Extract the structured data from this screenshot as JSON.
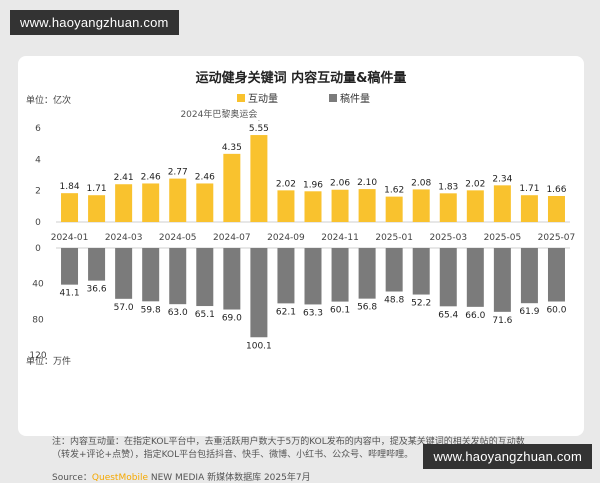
{
  "watermark": {
    "text": "www.haoyangzhuan.com"
  },
  "colors": {
    "interaction": "#f9c22e",
    "posts": "#7b7b7b",
    "annotation_line": "#a8a8a8"
  },
  "chart_data": {
    "type": "bar",
    "title": "运动健身关键词 内容互动量&稿件量",
    "categories": [
      "2024-01",
      "2024-02",
      "2024-03",
      "2024-04",
      "2024-05",
      "2024-06",
      "2024-07",
      "2024-08",
      "2024-09",
      "2024-10",
      "2024-11",
      "2024-12",
      "2025-01",
      "2025-02",
      "2025-03",
      "2025-04",
      "2025-05",
      "2025-06",
      "2025-07"
    ],
    "tick_labels": [
      "2024-01",
      "2024-03",
      "2024-05",
      "2024-07",
      "2024-09",
      "2024-11",
      "2025-01",
      "2025-03",
      "2025-05",
      "2025-07"
    ],
    "series": [
      {
        "name": "互动量",
        "unit": "单位：亿次",
        "values": [
          1.84,
          1.71,
          2.41,
          2.46,
          2.77,
          2.46,
          4.35,
          5.55,
          2.02,
          1.96,
          2.06,
          2.1,
          1.62,
          2.08,
          1.83,
          2.02,
          2.34,
          1.71,
          1.66
        ],
        "labels": [
          "1.84",
          "1.71",
          "2.41",
          "2.46",
          "2.77",
          "2.46",
          "4.35",
          "5.55",
          "2.02",
          "1.96",
          "2.06",
          "2.10",
          "1.62",
          "2.08",
          "1.83",
          "2.02",
          "2.34",
          "1.71",
          "1.66"
        ],
        "ylim": [
          0,
          6
        ],
        "yticks": [
          "0",
          "2",
          "4",
          "6"
        ]
      },
      {
        "name": "稿件量",
        "unit": "单位：万件",
        "values": [
          41.1,
          36.6,
          57.0,
          59.8,
          63.0,
          65.1,
          69.0,
          100.1,
          62.1,
          63.3,
          60.1,
          56.8,
          48.8,
          52.2,
          65.4,
          66.0,
          71.6,
          61.9,
          60.0
        ],
        "labels": [
          "41.1",
          "36.6",
          "57.0",
          "59.8",
          "63.0",
          "65.1",
          "69.0",
          "100.1",
          "62.1",
          "63.3",
          "60.1",
          "56.8",
          "48.8",
          "52.2",
          "65.4",
          "66.0",
          "71.6",
          "61.9",
          "60.0"
        ],
        "ylim": [
          0,
          120
        ],
        "yticks": [
          "0",
          "40",
          "80",
          "120"
        ]
      }
    ],
    "annotation": {
      "text": "2024年巴黎奥运会",
      "category": "2024-08"
    },
    "legend_position": "top-center",
    "grid": false
  },
  "notes": [
    "注：内容互动量：在指定KOL平台中，去重活跃用户数大于5万的KOL发布的内容中，提及某关键词的相关发帖的互动数",
    "（转发+评论+点赞），指定KOL平台包括抖音、快手、微博、小红书、公众号、哔哩哔哩。"
  ],
  "source": {
    "prefix": "Source：",
    "brand": "QuestMobile",
    "suffix": " NEW MEDIA 新媒体数据库 2025年7月"
  }
}
